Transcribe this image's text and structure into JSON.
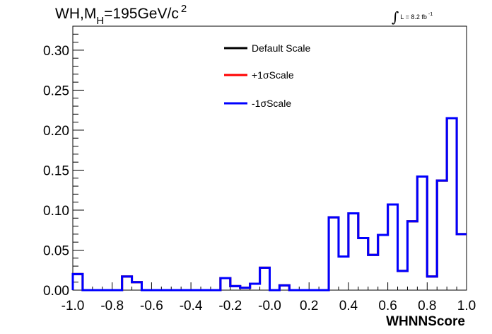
{
  "header": {
    "title_main": "WH,M",
    "title_sub": "H",
    "title_rest": "=195GeV/c",
    "title_sup": "2",
    "lumi_integral": "∫",
    "lumi_text": "L = 8.2 fb",
    "lumi_sup": "-1"
  },
  "chart_data": {
    "type": "line",
    "style": "step-histogram",
    "xlabel": "WHNNScore",
    "ylabel": "",
    "xlim": [
      -1.0,
      1.0
    ],
    "ylim": [
      0.0,
      0.33
    ],
    "grid": false,
    "legend_position": "top-center",
    "x_ticks": [
      "-1.0",
      "-0.8",
      "-0.6",
      "-0.4",
      "-0.2",
      "-0.0",
      "0.2",
      "0.4",
      "0.6",
      "0.8",
      "1.0"
    ],
    "y_ticks": [
      "0.00",
      "0.05",
      "0.10",
      "0.15",
      "0.20",
      "0.25",
      "0.30"
    ],
    "bin_edges": [
      -1.0,
      -0.95,
      -0.9,
      -0.85,
      -0.8,
      -0.75,
      -0.7,
      -0.65,
      -0.6,
      -0.55,
      -0.5,
      -0.45,
      -0.4,
      -0.35,
      -0.3,
      -0.25,
      -0.2,
      -0.15,
      -0.1,
      -0.05,
      0.0,
      0.05,
      0.1,
      0.15,
      0.2,
      0.25,
      0.3,
      0.35,
      0.4,
      0.45,
      0.5,
      0.55,
      0.6,
      0.65,
      0.7,
      0.75,
      0.8,
      0.85,
      0.9,
      0.95,
      1.0
    ],
    "series": [
      {
        "name": "Default Scale",
        "color": "#000000",
        "values": [
          0.02,
          0.0,
          0.0,
          0.0,
          0.0,
          0.017,
          0.01,
          0.0,
          0.0,
          0.0,
          0.0,
          0.0,
          0.0,
          0.0,
          0.0,
          0.015,
          0.005,
          0.003,
          0.008,
          0.028,
          0.0,
          0.006,
          0.0,
          0.0,
          0.0,
          0.0,
          0.091,
          0.042,
          0.096,
          0.065,
          0.044,
          0.069,
          0.107,
          0.024,
          0.086,
          0.142,
          0.017,
          0.137,
          0.215,
          0.07
        ]
      },
      {
        "name": "+1σScale",
        "color": "#ff0000",
        "values": [
          0.02,
          0.0,
          0.0,
          0.0,
          0.0,
          0.017,
          0.01,
          0.0,
          0.0,
          0.0,
          0.0,
          0.0,
          0.0,
          0.0,
          0.0,
          0.015,
          0.005,
          0.003,
          0.008,
          0.028,
          0.0,
          0.006,
          0.0,
          0.0,
          0.0,
          0.0,
          0.091,
          0.042,
          0.096,
          0.065,
          0.044,
          0.069,
          0.107,
          0.024,
          0.086,
          0.142,
          0.017,
          0.137,
          0.215,
          0.07
        ]
      },
      {
        "name": "-1σScale",
        "color": "#0000ff",
        "values": [
          0.02,
          0.0,
          0.0,
          0.0,
          0.0,
          0.017,
          0.01,
          0.0,
          0.0,
          0.0,
          0.0,
          0.0,
          0.0,
          0.0,
          0.0,
          0.015,
          0.005,
          0.003,
          0.008,
          0.028,
          0.0,
          0.006,
          0.0,
          0.0,
          0.0,
          0.0,
          0.091,
          0.042,
          0.096,
          0.065,
          0.044,
          0.069,
          0.107,
          0.024,
          0.086,
          0.142,
          0.017,
          0.137,
          0.215,
          0.07
        ]
      }
    ]
  }
}
